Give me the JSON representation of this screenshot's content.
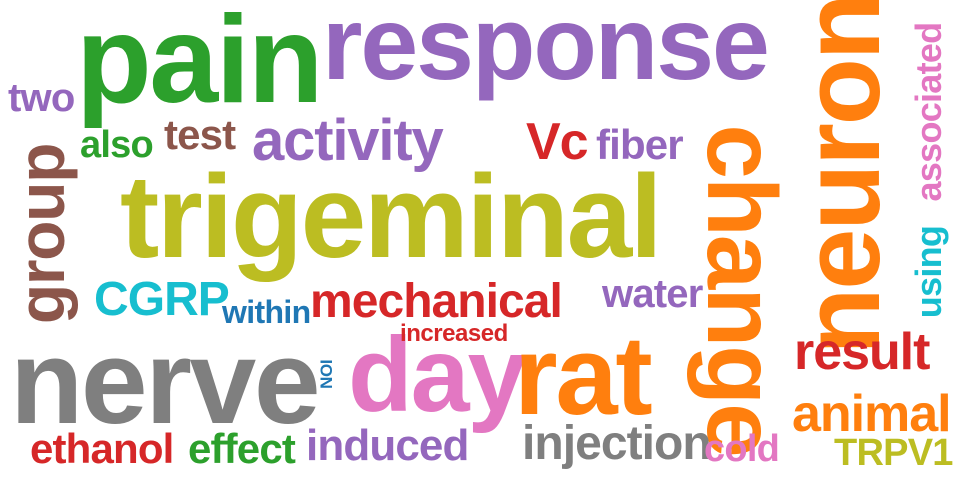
{
  "colors": {
    "purple": "#9467bd",
    "green": "#2ca02c",
    "orange": "#ff7f0e",
    "olive": "#bcbd22",
    "gray": "#7f7f7f",
    "pink": "#e377c2",
    "brown": "#8c564b",
    "red": "#d62728",
    "cyan": "#17becf",
    "blue": "#1f77b4"
  },
  "words": [
    {
      "id": "response",
      "text": "response",
      "color": "purple",
      "weight": 100
    },
    {
      "id": "pain",
      "text": "pain",
      "color": "green",
      "weight": 95
    },
    {
      "id": "trigeminal",
      "text": "trigeminal",
      "color": "olive",
      "weight": 100
    },
    {
      "id": "neuron",
      "text": "neuron",
      "color": "orange",
      "weight": 90
    },
    {
      "id": "change",
      "text": "change",
      "color": "orange",
      "weight": 88
    },
    {
      "id": "nerve",
      "text": "nerve",
      "color": "gray",
      "weight": 92
    },
    {
      "id": "day",
      "text": "day",
      "color": "pink",
      "weight": 80
    },
    {
      "id": "rat",
      "text": "rat",
      "color": "orange",
      "weight": 85
    },
    {
      "id": "group",
      "text": "group",
      "color": "brown",
      "weight": 60
    },
    {
      "id": "activity",
      "text": "activity",
      "color": "purple",
      "weight": 55
    },
    {
      "id": "mechanical",
      "text": "mechanical",
      "color": "red",
      "weight": 48
    },
    {
      "id": "associated",
      "text": "associated",
      "color": "pink",
      "weight": 35
    },
    {
      "id": "using",
      "text": "using",
      "color": "cyan",
      "weight": 30
    },
    {
      "id": "result",
      "text": "result",
      "color": "red",
      "weight": 45
    },
    {
      "id": "animal",
      "text": "animal",
      "color": "orange",
      "weight": 45
    },
    {
      "id": "two",
      "text": "two",
      "color": "purple",
      "weight": 30
    },
    {
      "id": "test",
      "text": "test",
      "color": "brown",
      "weight": 35
    },
    {
      "id": "also",
      "text": "also",
      "color": "green",
      "weight": 30
    },
    {
      "id": "vc",
      "text": "Vc",
      "color": "red",
      "weight": 40
    },
    {
      "id": "fiber",
      "text": "fiber",
      "color": "purple",
      "weight": 35
    },
    {
      "id": "cgrp",
      "text": "CGRP",
      "color": "cyan",
      "weight": 45
    },
    {
      "id": "within",
      "text": "within",
      "color": "blue",
      "weight": 28
    },
    {
      "id": "water",
      "text": "water",
      "color": "purple",
      "weight": 35
    },
    {
      "id": "increased",
      "text": "increased",
      "color": "red",
      "weight": 20
    },
    {
      "id": "ion",
      "text": "ION",
      "color": "blue",
      "weight": 12
    },
    {
      "id": "ethanol",
      "text": "ethanol",
      "color": "red",
      "weight": 35
    },
    {
      "id": "effect",
      "text": "effect",
      "color": "green",
      "weight": 35
    },
    {
      "id": "induced",
      "text": "induced",
      "color": "purple",
      "weight": 35
    },
    {
      "id": "injection",
      "text": "injection",
      "color": "gray",
      "weight": 40
    },
    {
      "id": "cold",
      "text": "cold",
      "color": "pink",
      "weight": 30
    },
    {
      "id": "trpv1",
      "text": "TRPV1",
      "color": "olive",
      "weight": 30
    }
  ]
}
